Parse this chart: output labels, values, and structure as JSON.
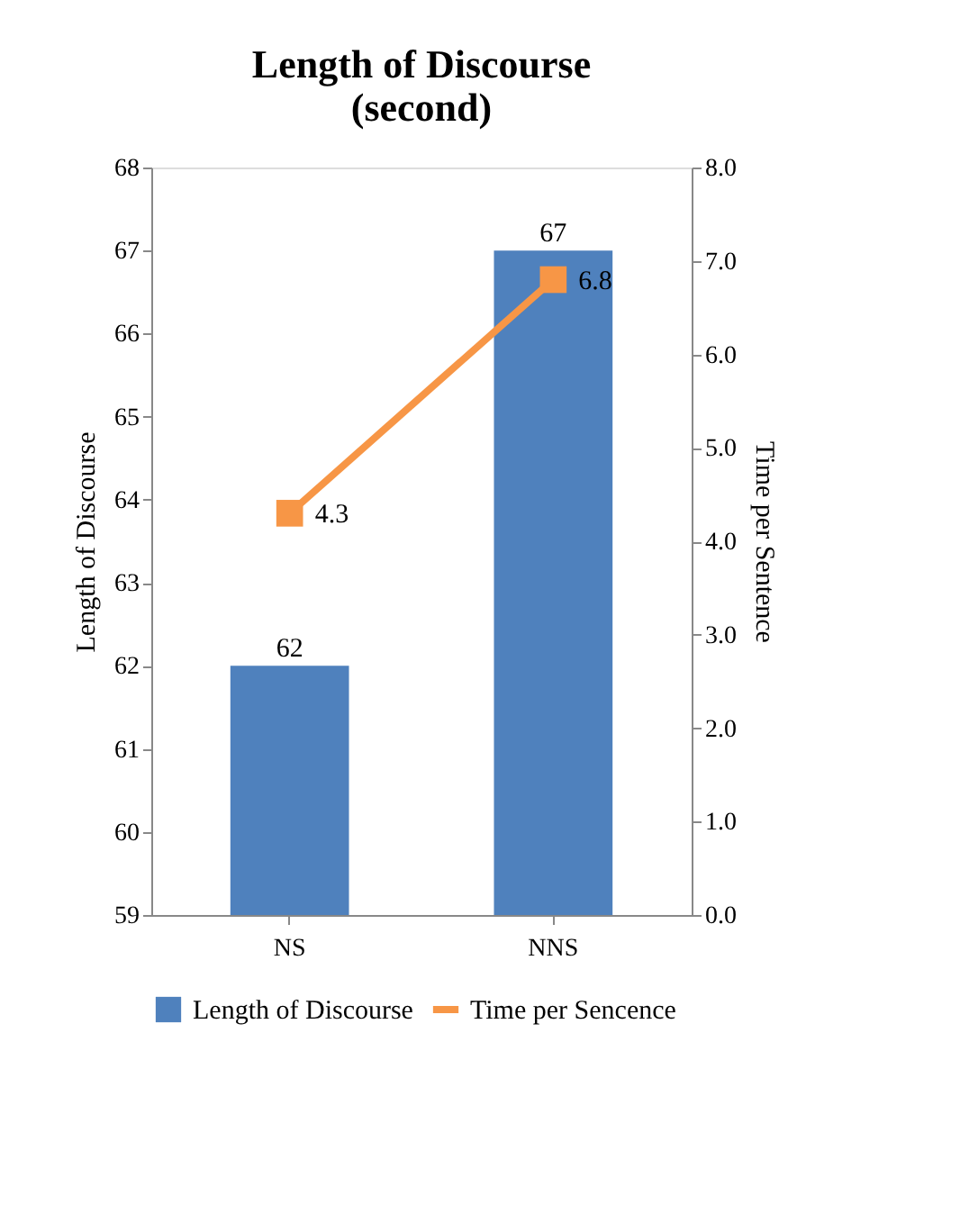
{
  "chart_data": {
    "type": "bar",
    "title": "Length of Discourse\n(second)",
    "categories": [
      "NS",
      "NNS"
    ],
    "series": [
      {
        "name": "Length of Discourse",
        "color": "#4f81bd",
        "values": [
          62,
          67
        ]
      },
      {
        "name": "Time per Sencence",
        "type": "line",
        "axis": "y2",
        "color": "#f79646",
        "values": [
          4.3,
          6.8
        ]
      }
    ],
    "ylabel": "Length of Discourse",
    "y2label": "Time per Sentence",
    "ylim": [
      59,
      68
    ],
    "yticks": [
      59,
      60,
      61,
      62,
      63,
      64,
      65,
      66,
      67,
      68
    ],
    "y2lim": [
      0,
      8
    ],
    "y2ticks": [
      {
        "value": 0,
        "label": "0.0"
      },
      {
        "value": 1,
        "label": "1.0"
      },
      {
        "value": 2,
        "label": "2.0"
      },
      {
        "value": 3,
        "label": "3.0"
      },
      {
        "value": 4,
        "label": "4.0"
      },
      {
        "value": 5,
        "label": "5.0"
      },
      {
        "value": 6,
        "label": "6.0"
      },
      {
        "value": 7,
        "label": "7.0"
      },
      {
        "value": 8,
        "label": "8.0"
      }
    ],
    "data_labels": true,
    "legend": "bottom",
    "grid": false,
    "marker": "square"
  }
}
